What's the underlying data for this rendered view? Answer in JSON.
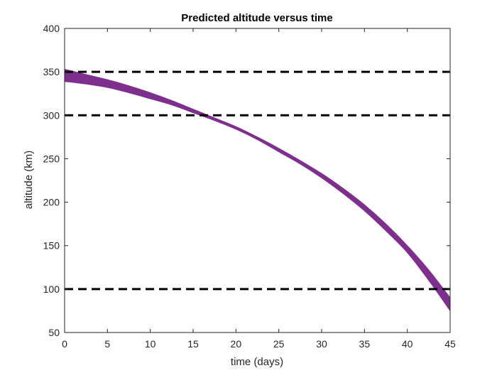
{
  "chart_data": {
    "type": "area",
    "title": "Predicted altitude versus time",
    "xlabel": "time (days)",
    "ylabel": "altitude (km)",
    "xlim": [
      0,
      45
    ],
    "ylim": [
      50,
      400
    ],
    "xticks": [
      0,
      5,
      10,
      15,
      20,
      25,
      30,
      35,
      40,
      45
    ],
    "yticks": [
      50,
      100,
      150,
      200,
      250,
      300,
      350,
      400
    ],
    "grid": false,
    "band_color": "#7E2F8E",
    "reference_line_color": "#000000",
    "reference_lines_y": [
      350,
      300,
      100
    ],
    "band": {
      "x": [
        0,
        2.5,
        5,
        7.5,
        10,
        12.5,
        15,
        17.5,
        20,
        22.5,
        25,
        27.5,
        30,
        32.5,
        35,
        37.5,
        40,
        42.5,
        45
      ],
      "upper": [
        353,
        347,
        341,
        334,
        326,
        317,
        307,
        297,
        287,
        275,
        262,
        248,
        233,
        216,
        197,
        175,
        150,
        122,
        90
      ],
      "lower": [
        339,
        336,
        332,
        326,
        319,
        312,
        303,
        294,
        284,
        272,
        258,
        244,
        228,
        210,
        190,
        167,
        142,
        110,
        75
      ]
    }
  }
}
